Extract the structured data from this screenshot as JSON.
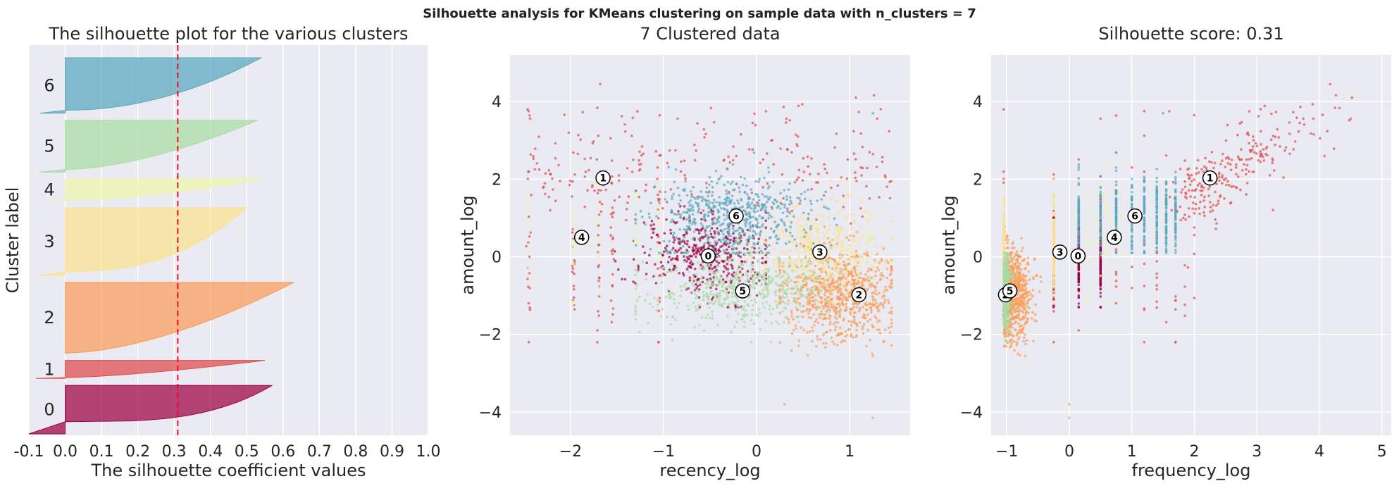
{
  "suptitle": "Silhouette analysis for KMeans clustering on sample data with n_clusters = 7",
  "colors": {
    "background": "#eaeaf2",
    "grid": "#ffffff",
    "threshold_line": "#e8141c",
    "clusters": [
      "#9e0142",
      "#e04a4a",
      "#f99d59",
      "#fbe38f",
      "#eff7a7",
      "#a9dca4",
      "#5aa8be"
    ]
  },
  "chart_data": [
    {
      "type": "area",
      "title": "The silhouette plot for the various clusters",
      "xlabel": "The silhouette coefficient values",
      "ylabel": "Cluster label",
      "xlim": [
        -0.1,
        1.0
      ],
      "xticks": [
        "-0.1",
        "0.0",
        "0.1",
        "0.2",
        "0.3",
        "0.4",
        "0.5",
        "0.6",
        "0.7",
        "0.8",
        "0.9",
        "1.0"
      ],
      "xtick_values": [
        -0.1,
        0.0,
        0.1,
        0.2,
        0.3,
        0.4,
        0.5,
        0.6,
        0.7,
        0.8,
        0.9,
        1.0
      ],
      "grid": true,
      "average_silhouette_line": 0.31,
      "clusters": [
        {
          "label": "0",
          "size": 140,
          "max": 0.57,
          "min": -0.1,
          "neg_fraction": 0.25,
          "exp": 0.3
        },
        {
          "label": "1",
          "size": 52,
          "max": 0.55,
          "min": -0.08,
          "neg_fraction": 0.04,
          "exp": 0.7
        },
        {
          "label": "2",
          "size": 205,
          "max": 0.63,
          "min": 0.0,
          "neg_fraction": 0.0,
          "exp": 0.6
        },
        {
          "label": "3",
          "size": 195,
          "max": 0.5,
          "min": -0.07,
          "neg_fraction": 0.05,
          "exp": 0.4
        },
        {
          "label": "4",
          "size": 62,
          "max": 0.54,
          "min": -0.05,
          "neg_fraction": 0.03,
          "exp": 0.6
        },
        {
          "label": "5",
          "size": 150,
          "max": 0.53,
          "min": -0.07,
          "neg_fraction": 0.05,
          "exp": 0.6
        },
        {
          "label": "6",
          "size": 160,
          "max": 0.54,
          "min": -0.07,
          "neg_fraction": 0.05,
          "exp": 0.5
        }
      ]
    },
    {
      "type": "scatter",
      "title": "7 Clustered data",
      "xlabel": "recency_log",
      "ylabel": "amount_log",
      "xlim": [
        -2.65,
        1.65
      ],
      "ylim": [
        -4.6,
        5.2
      ],
      "xticks": [
        -2,
        -1,
        0,
        1
      ],
      "yticks": [
        -4,
        -2,
        0,
        2,
        4
      ],
      "grid": true,
      "point_counts": [
        420,
        25,
        780,
        500,
        90,
        500,
        560
      ],
      "centers": [
        {
          "label": "0",
          "x": -0.52,
          "y": 0.02
        },
        {
          "label": "1",
          "x": -1.65,
          "y": 2.03
        },
        {
          "label": "2",
          "x": 1.1,
          "y": -0.98
        },
        {
          "label": "3",
          "x": 0.68,
          "y": 0.12
        },
        {
          "label": "4",
          "x": -1.88,
          "y": 0.5
        },
        {
          "label": "5",
          "x": -0.15,
          "y": -0.88
        },
        {
          "label": "6",
          "x": -0.22,
          "y": 1.05
        }
      ]
    },
    {
      "type": "scatter",
      "title": "Silhouette score: 0.31",
      "xlabel": "frequency_log",
      "ylabel": "amount_log",
      "xlim": [
        -1.25,
        5.15
      ],
      "ylim": [
        -4.6,
        5.2
      ],
      "xticks": [
        -1,
        0,
        1,
        2,
        3,
        4,
        5
      ],
      "yticks": [
        -4,
        -2,
        0,
        2,
        4
      ],
      "grid": true,
      "centers": [
        {
          "label": "0",
          "x": 0.14,
          "y": 0.02
        },
        {
          "label": "1",
          "x": 2.25,
          "y": 2.03
        },
        {
          "label": "2",
          "x": -1.02,
          "y": -0.98
        },
        {
          "label": "3",
          "x": -0.15,
          "y": 0.12
        },
        {
          "label": "4",
          "x": 0.72,
          "y": 0.5
        },
        {
          "label": "5",
          "x": -0.95,
          "y": -0.88
        },
        {
          "label": "6",
          "x": 1.05,
          "y": 1.05
        }
      ]
    }
  ]
}
